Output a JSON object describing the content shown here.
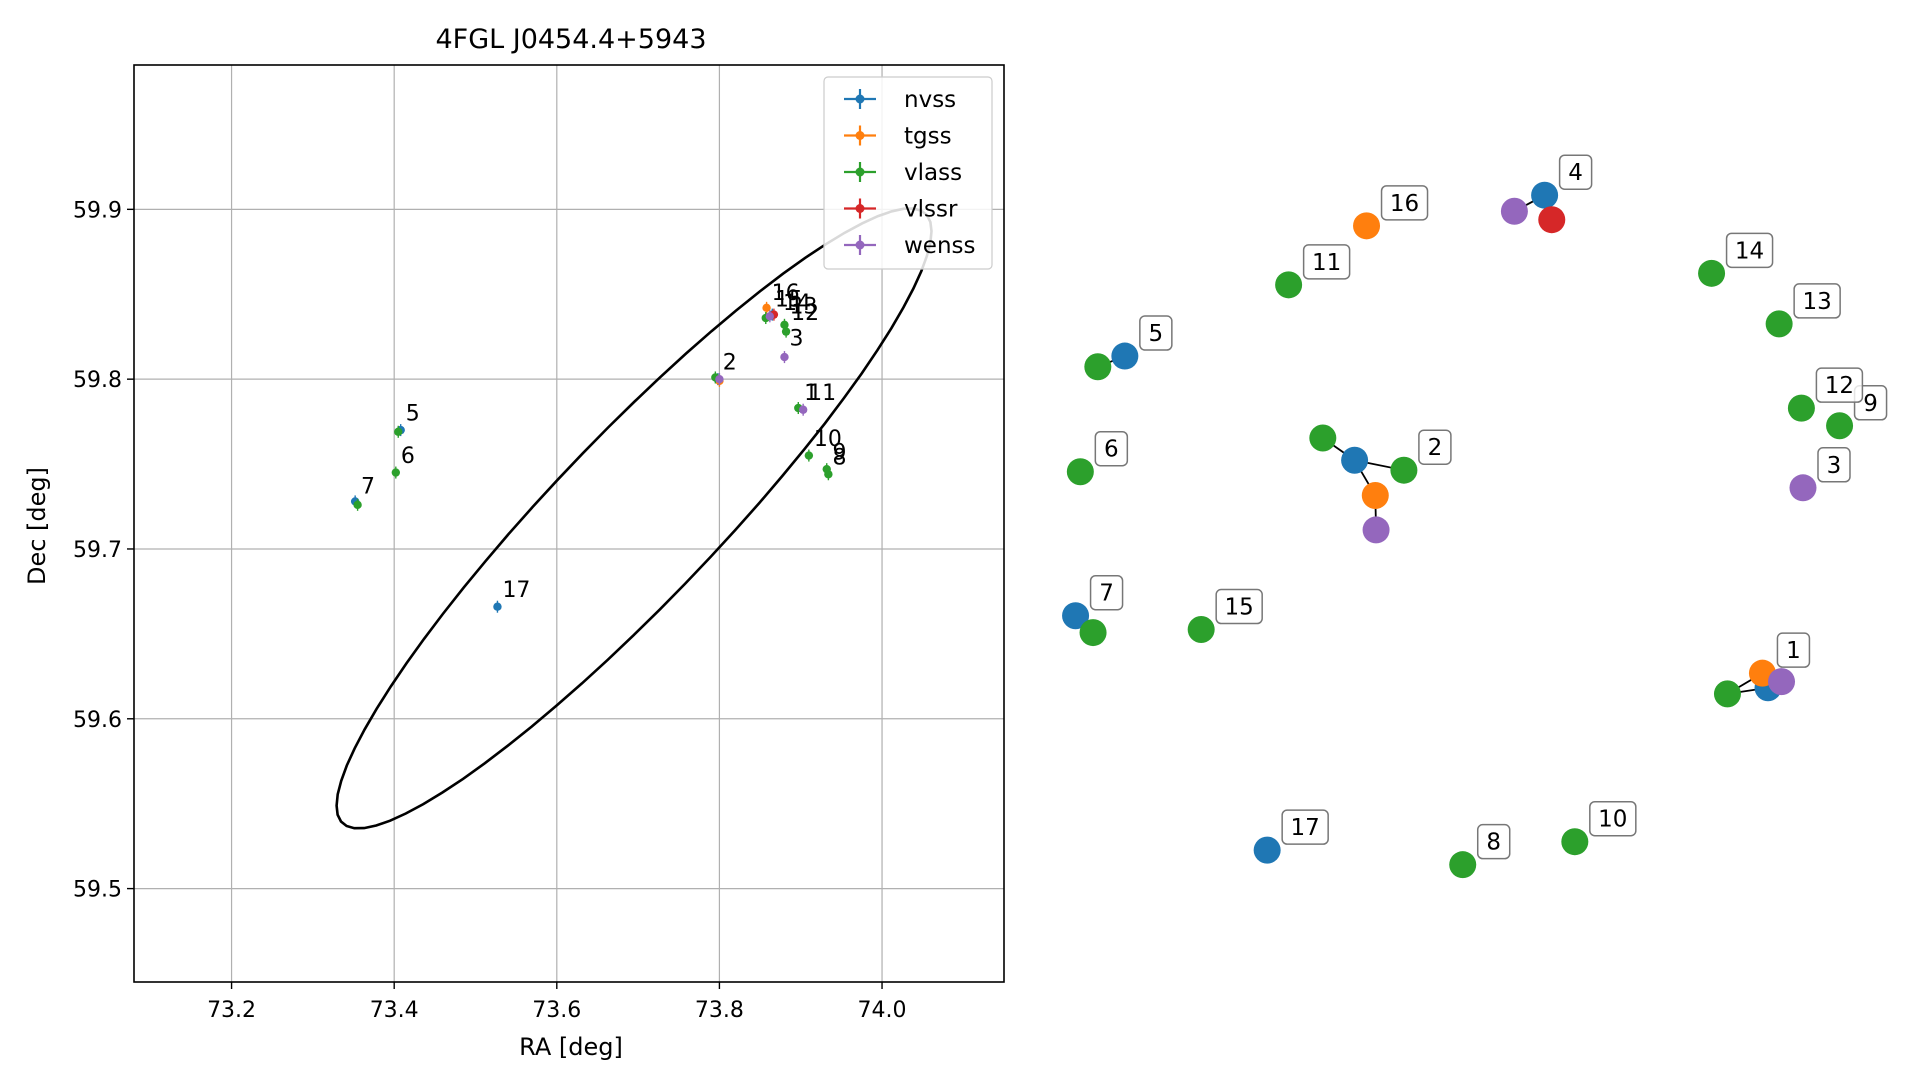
{
  "chart_data": [
    {
      "type": "scatter",
      "title": "4FGL J0454.4+5943",
      "xlabel": "RA [deg]",
      "ylabel": "Dec [deg]",
      "xlim": [
        73.08,
        74.15
      ],
      "ylim": [
        59.445,
        59.985
      ],
      "xticks": [
        "73.2",
        "73.4",
        "73.6",
        "73.8",
        "74.0"
      ],
      "xtick_values": [
        73.2,
        73.4,
        73.6,
        73.8,
        74.0
      ],
      "yticks": [
        "59.5",
        "59.6",
        "59.7",
        "59.8",
        "59.9"
      ],
      "ytick_values": [
        59.5,
        59.6,
        59.7,
        59.8,
        59.9
      ],
      "grid": true,
      "legend_position": "top-right",
      "colors": {
        "nvss": "#1f77b4",
        "tgss": "#ff7f0e",
        "vlass": "#2ca02c",
        "vlssr": "#d62728",
        "wenss": "#9467bd"
      },
      "series": [
        {
          "name": "nvss",
          "points": [
            {
              "x": 73.408,
              "y": 59.77
            },
            {
              "x": 73.352,
              "y": 59.728
            },
            {
              "x": 73.798,
              "y": 59.8
            },
            {
              "x": 73.865,
              "y": 59.838
            },
            {
              "x": 73.527,
              "y": 59.666
            }
          ]
        },
        {
          "name": "tgss",
          "points": [
            {
              "x": 73.858,
              "y": 59.842
            },
            {
              "x": 73.8,
              "y": 59.799
            }
          ]
        },
        {
          "name": "vlass",
          "points": [
            {
              "x": 73.405,
              "y": 59.769
            },
            {
              "x": 73.402,
              "y": 59.745
            },
            {
              "x": 73.355,
              "y": 59.726
            },
            {
              "x": 73.795,
              "y": 59.801
            },
            {
              "x": 73.857,
              "y": 59.836
            },
            {
              "x": 73.88,
              "y": 59.832
            },
            {
              "x": 73.882,
              "y": 59.828
            },
            {
              "x": 73.897,
              "y": 59.783
            },
            {
              "x": 73.91,
              "y": 59.755
            },
            {
              "x": 73.932,
              "y": 59.747
            },
            {
              "x": 73.934,
              "y": 59.744
            }
          ]
        },
        {
          "name": "vlssr",
          "points": [
            {
              "x": 73.867,
              "y": 59.838
            }
          ]
        },
        {
          "name": "wenss",
          "points": [
            {
              "x": 73.862,
              "y": 59.837
            },
            {
              "x": 73.88,
              "y": 59.813
            },
            {
              "x": 73.903,
              "y": 59.782
            },
            {
              "x": 73.8,
              "y": 59.8
            }
          ]
        }
      ],
      "labels": [
        {
          "text": "16",
          "x": 73.858,
          "y": 59.842
        },
        {
          "text": "15",
          "x": 73.862,
          "y": 59.838
        },
        {
          "text": "14",
          "x": 73.872,
          "y": 59.836
        },
        {
          "text": "13",
          "x": 73.88,
          "y": 59.834
        },
        {
          "text": "12",
          "x": 73.882,
          "y": 59.83
        },
        {
          "text": "3",
          "x": 73.88,
          "y": 59.815
        },
        {
          "text": "2",
          "x": 73.798,
          "y": 59.801
        },
        {
          "text": "1",
          "x": 73.898,
          "y": 59.783
        },
        {
          "text": "11",
          "x": 73.903,
          "y": 59.783
        },
        {
          "text": "10",
          "x": 73.91,
          "y": 59.756
        },
        {
          "text": "9",
          "x": 73.933,
          "y": 59.748
        },
        {
          "text": "8",
          "x": 73.933,
          "y": 59.745
        },
        {
          "text": "5",
          "x": 73.408,
          "y": 59.771
        },
        {
          "text": "6",
          "x": 73.402,
          "y": 59.746
        },
        {
          "text": "7",
          "x": 73.353,
          "y": 59.728
        },
        {
          "text": "17",
          "x": 73.527,
          "y": 59.667
        }
      ],
      "ellipse": {
        "center_ra": 73.695,
        "center_dec": 59.718,
        "semi_major": 0.485,
        "semi_minor": 0.094,
        "angle_deg": 42
      }
    },
    {
      "type": "network",
      "nodes": [
        {
          "id": "n1",
          "group": "nvss",
          "label": "",
          "x": 0.878,
          "y": 0.702
        },
        {
          "id": "t1",
          "group": "tgss",
          "label": "1",
          "x": 0.871,
          "y": 0.683
        },
        {
          "id": "w1",
          "group": "wenss",
          "label": "",
          "x": 0.895,
          "y": 0.694
        },
        {
          "id": "v1",
          "group": "vlass",
          "label": "",
          "x": 0.827,
          "y": 0.71
        },
        {
          "id": "n2",
          "group": "nvss",
          "label": "",
          "x": 0.358,
          "y": 0.405
        },
        {
          "id": "v2a",
          "group": "vlass",
          "label": "",
          "x": 0.318,
          "y": 0.376
        },
        {
          "id": "v2b",
          "group": "vlass",
          "label": "2",
          "x": 0.42,
          "y": 0.418
        },
        {
          "id": "t2",
          "group": "tgss",
          "label": "",
          "x": 0.384,
          "y": 0.451
        },
        {
          "id": "w2",
          "group": "wenss",
          "label": "",
          "x": 0.385,
          "y": 0.496
        },
        {
          "id": "w3",
          "group": "wenss",
          "label": "3",
          "x": 0.922,
          "y": 0.441
        },
        {
          "id": "n4",
          "group": "nvss",
          "label": "4",
          "x": 0.597,
          "y": 0.059
        },
        {
          "id": "w4",
          "group": "wenss",
          "label": "",
          "x": 0.559,
          "y": 0.08
        },
        {
          "id": "r4",
          "group": "vlssr",
          "label": "",
          "x": 0.606,
          "y": 0.091
        },
        {
          "id": "n5",
          "group": "nvss",
          "label": "5",
          "x": 0.069,
          "y": 0.269
        },
        {
          "id": "v5",
          "group": "vlass",
          "label": "",
          "x": 0.035,
          "y": 0.283
        },
        {
          "id": "v6",
          "group": "vlass",
          "label": "6",
          "x": 0.013,
          "y": 0.42
        },
        {
          "id": "n7",
          "group": "nvss",
          "label": "7",
          "x": 0.007,
          "y": 0.608
        },
        {
          "id": "v7",
          "group": "vlass",
          "label": "",
          "x": 0.029,
          "y": 0.63
        },
        {
          "id": "v8",
          "group": "vlass",
          "label": "8",
          "x": 0.494,
          "y": 0.933
        },
        {
          "id": "v9",
          "group": "vlass",
          "label": "9",
          "x": 0.968,
          "y": 0.36
        },
        {
          "id": "v10",
          "group": "vlass",
          "label": "10",
          "x": 0.635,
          "y": 0.903
        },
        {
          "id": "v11",
          "group": "vlass",
          "label": "11",
          "x": 0.275,
          "y": 0.176
        },
        {
          "id": "v12",
          "group": "vlass",
          "label": "12",
          "x": 0.92,
          "y": 0.337
        },
        {
          "id": "v13",
          "group": "vlass",
          "label": "13",
          "x": 0.892,
          "y": 0.227
        },
        {
          "id": "v14",
          "group": "vlass",
          "label": "14",
          "x": 0.807,
          "y": 0.161
        },
        {
          "id": "v15",
          "group": "vlass",
          "label": "15",
          "x": 0.165,
          "y": 0.626
        },
        {
          "id": "t16",
          "group": "tgss",
          "label": "16",
          "x": 0.373,
          "y": 0.099
        },
        {
          "id": "n17",
          "group": "nvss",
          "label": "17",
          "x": 0.248,
          "y": 0.914
        }
      ],
      "edges": [
        [
          "n1",
          "t1"
        ],
        [
          "n1",
          "w1"
        ],
        [
          "n1",
          "v1"
        ],
        [
          "t1",
          "v1"
        ],
        [
          "n2",
          "v2a"
        ],
        [
          "n2",
          "v2b"
        ],
        [
          "n2",
          "t2"
        ],
        [
          "t2",
          "w2"
        ],
        [
          "n4",
          "w4"
        ],
        [
          "n4",
          "r4"
        ],
        [
          "n5",
          "v5"
        ],
        [
          "n7",
          "v7"
        ]
      ]
    }
  ]
}
